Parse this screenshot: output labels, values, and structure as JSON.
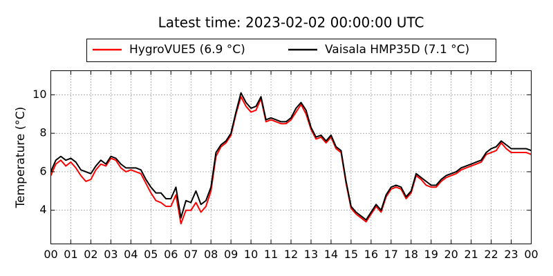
{
  "chart_data": {
    "type": "line",
    "title": "Latest time: 2023-02-02 00:00:00 UTC",
    "y_label": "Temperature (°C)",
    "legend_labels": [
      "HygroVUE5 (6.9 °C)",
      "Vaisala HMP35D (7.1 °C)"
    ],
    "x": [
      0,
      0.25,
      0.5,
      0.75,
      1,
      1.25,
      1.5,
      1.75,
      2,
      2.25,
      2.5,
      2.75,
      3,
      3.25,
      3.5,
      3.75,
      4,
      4.25,
      4.5,
      4.75,
      5,
      5.25,
      5.5,
      5.75,
      6,
      6.25,
      6.5,
      6.75,
      7,
      7.25,
      7.5,
      7.75,
      8,
      8.25,
      8.5,
      8.75,
      9,
      9.25,
      9.5,
      9.75,
      10,
      10.25,
      10.5,
      10.75,
      11,
      11.25,
      11.5,
      11.75,
      12,
      12.25,
      12.5,
      12.75,
      13,
      13.25,
      13.5,
      13.75,
      14,
      14.25,
      14.5,
      14.75,
      15,
      15.25,
      15.5,
      15.75,
      16,
      16.25,
      16.5,
      16.75,
      17,
      17.25,
      17.5,
      17.75,
      18,
      18.25,
      18.5,
      18.75,
      19,
      19.25,
      19.5,
      19.75,
      20,
      20.25,
      20.5,
      20.75,
      21,
      21.25,
      21.5,
      21.75,
      22,
      22.25,
      22.5,
      22.75,
      23,
      23.25,
      23.5,
      23.75,
      24
    ],
    "series": [
      {
        "name": "HygroVUE5",
        "color": "#ff0000",
        "values": [
          5.8,
          6.4,
          6.6,
          6.3,
          6.5,
          6.2,
          5.8,
          5.5,
          5.6,
          6.1,
          6.4,
          6.3,
          6.7,
          6.6,
          6.2,
          6.0,
          6.1,
          6.0,
          5.9,
          5.4,
          4.9,
          4.5,
          4.4,
          4.2,
          4.2,
          4.8,
          3.3,
          4.0,
          4.0,
          4.4,
          3.9,
          4.2,
          5.0,
          6.8,
          7.3,
          7.5,
          7.9,
          9.0,
          9.9,
          9.4,
          9.1,
          9.2,
          9.8,
          8.6,
          8.7,
          8.6,
          8.5,
          8.5,
          8.7,
          9.1,
          9.5,
          9.0,
          8.2,
          7.7,
          7.8,
          7.5,
          7.8,
          7.2,
          7.0,
          5.4,
          4.1,
          3.8,
          3.6,
          3.4,
          3.8,
          4.2,
          3.9,
          4.7,
          5.1,
          5.2,
          5.1,
          4.6,
          4.9,
          5.8,
          5.6,
          5.3,
          5.2,
          5.2,
          5.5,
          5.7,
          5.8,
          5.9,
          6.1,
          6.2,
          6.3,
          6.4,
          6.5,
          6.9,
          7.0,
          7.1,
          7.5,
          7.2,
          7.0,
          7.0,
          7.0,
          7.0,
          6.9
        ]
      },
      {
        "name": "Vaisala HMP35D",
        "color": "#000000",
        "values": [
          6.0,
          6.6,
          6.8,
          6.6,
          6.7,
          6.5,
          6.1,
          6.0,
          5.9,
          6.3,
          6.6,
          6.4,
          6.8,
          6.7,
          6.4,
          6.2,
          6.2,
          6.2,
          6.1,
          5.6,
          5.2,
          4.9,
          4.9,
          4.6,
          4.6,
          5.2,
          3.6,
          4.5,
          4.4,
          5.0,
          4.3,
          4.5,
          5.2,
          7.0,
          7.4,
          7.6,
          8.0,
          9.1,
          10.1,
          9.6,
          9.3,
          9.4,
          9.9,
          8.7,
          8.8,
          8.7,
          8.6,
          8.6,
          8.8,
          9.3,
          9.6,
          9.2,
          8.3,
          7.8,
          7.9,
          7.6,
          7.9,
          7.3,
          7.1,
          5.5,
          4.2,
          3.9,
          3.7,
          3.5,
          3.9,
          4.3,
          4.0,
          4.8,
          5.2,
          5.3,
          5.2,
          4.7,
          5.0,
          5.9,
          5.7,
          5.5,
          5.3,
          5.3,
          5.6,
          5.8,
          5.9,
          6.0,
          6.2,
          6.3,
          6.4,
          6.5,
          6.6,
          7.0,
          7.2,
          7.3,
          7.6,
          7.4,
          7.2,
          7.2,
          7.2,
          7.2,
          7.1
        ]
      }
    ],
    "xlim": [
      0,
      24
    ],
    "xticks": [
      {
        "value": 0,
        "label": "00"
      },
      {
        "value": 1,
        "label": "01"
      },
      {
        "value": 2,
        "label": "02"
      },
      {
        "value": 3,
        "label": "03"
      },
      {
        "value": 4,
        "label": "04"
      },
      {
        "value": 5,
        "label": "05"
      },
      {
        "value": 6,
        "label": "06"
      },
      {
        "value": 7,
        "label": "07"
      },
      {
        "value": 8,
        "label": "08"
      },
      {
        "value": 9,
        "label": "09"
      },
      {
        "value": 10,
        "label": "10"
      },
      {
        "value": 11,
        "label": "11"
      },
      {
        "value": 12,
        "label": "12"
      },
      {
        "value": 13,
        "label": "13"
      },
      {
        "value": 14,
        "label": "14"
      },
      {
        "value": 15,
        "label": "15"
      },
      {
        "value": 16,
        "label": "16"
      },
      {
        "value": 17,
        "label": "17"
      },
      {
        "value": 18,
        "label": "18"
      },
      {
        "value": 19,
        "label": "19"
      },
      {
        "value": 20,
        "label": "20"
      },
      {
        "value": 21,
        "label": "21"
      },
      {
        "value": 22,
        "label": "22"
      },
      {
        "value": 23,
        "label": "23"
      },
      {
        "value": 24,
        "label": "00"
      }
    ],
    "ylim": [
      2.25,
      11.25
    ],
    "yticks": [
      4,
      6,
      8,
      10
    ],
    "grid": true,
    "legend": "top"
  }
}
